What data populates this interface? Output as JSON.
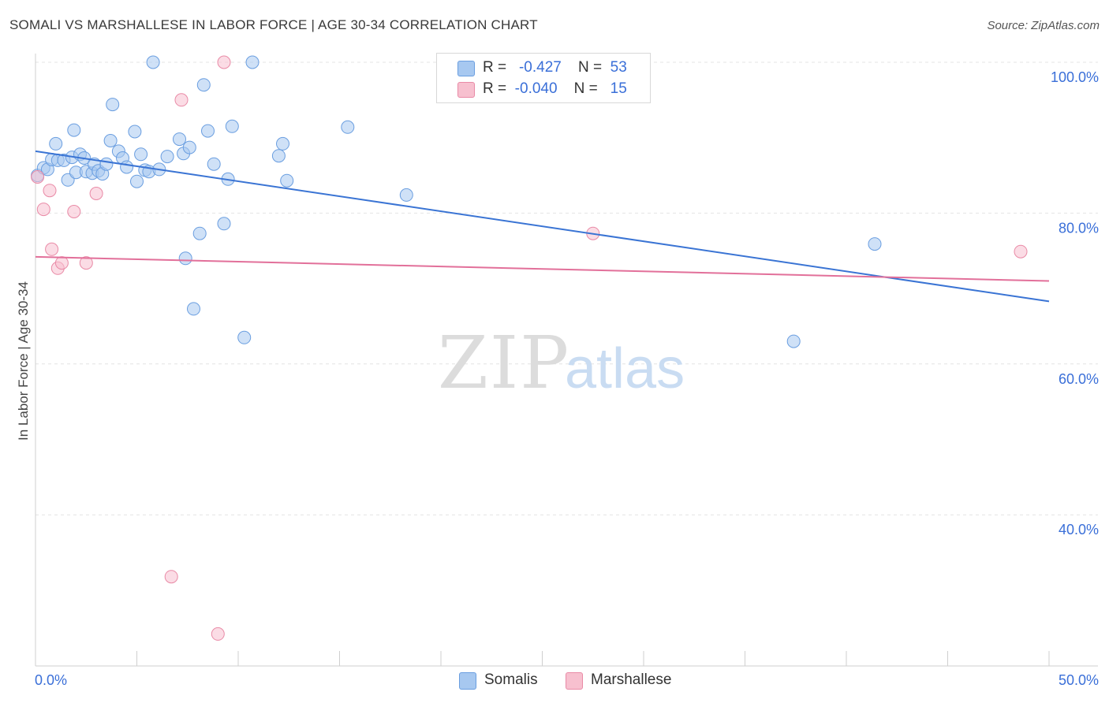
{
  "header": {
    "title": "SOMALI VS MARSHALLESE IN LABOR FORCE | AGE 30-34 CORRELATION CHART",
    "source": "Source: ZipAtlas.com"
  },
  "watermark": {
    "zip": "ZIP",
    "atlas": "atlas"
  },
  "legend": {
    "rows": [
      {
        "r_label": "R =",
        "r_value": "-0.427",
        "n_label": "N =",
        "n_value": "53",
        "color": "#a7c8f0",
        "border": "#6a9ee0"
      },
      {
        "r_label": "R =",
        "r_value": "-0.040",
        "n_label": "N =",
        "n_value": "15",
        "color": "#f7c0cf",
        "border": "#e98aa6"
      }
    ]
  },
  "bottom_legend": {
    "items": [
      {
        "label": "Somalis",
        "color": "#a7c8f0"
      },
      {
        "label": "Marshallese",
        "color": "#f7c0cf"
      }
    ]
  },
  "chart_data": {
    "type": "scatter",
    "title": "SOMALI VS MARSHALLESE IN LABOR FORCE | AGE 30-34 CORRELATION CHART",
    "xlabel": "",
    "ylabel": "In Labor Force | Age 30-34",
    "xlim": [
      0,
      50
    ],
    "ylim": [
      20,
      102
    ],
    "x_tick_labels": [
      "0.0%",
      "50.0%"
    ],
    "y_ticks": [
      40,
      60,
      80,
      100
    ],
    "y_tick_labels": [
      "40.0%",
      "60.0%",
      "80.0%",
      "100.0%"
    ],
    "grid": true,
    "series": [
      {
        "name": "Somalis",
        "color": "#a7c8f0",
        "stroke": "#6a9ee0",
        "line_color": "#3a74d4",
        "trend": {
          "x": [
            0,
            50
          ],
          "y": [
            88.2,
            68.3
          ]
        },
        "points": [
          [
            0.1,
            85.0
          ],
          [
            0.4,
            86.0
          ],
          [
            0.6,
            85.8
          ],
          [
            0.8,
            87.1
          ],
          [
            1.0,
            89.2
          ],
          [
            1.1,
            87.0
          ],
          [
            1.4,
            87.0
          ],
          [
            1.6,
            84.4
          ],
          [
            1.8,
            87.4
          ],
          [
            1.9,
            91.0
          ],
          [
            2.0,
            85.4
          ],
          [
            2.2,
            87.8
          ],
          [
            2.4,
            87.3
          ],
          [
            2.5,
            85.5
          ],
          [
            2.8,
            85.3
          ],
          [
            2.9,
            86.5
          ],
          [
            3.1,
            85.6
          ],
          [
            3.3,
            85.2
          ],
          [
            3.5,
            86.5
          ],
          [
            3.7,
            89.6
          ],
          [
            3.8,
            94.4
          ],
          [
            4.1,
            88.2
          ],
          [
            4.3,
            87.3
          ],
          [
            4.5,
            86.1
          ],
          [
            4.9,
            90.8
          ],
          [
            5.0,
            84.2
          ],
          [
            5.2,
            87.8
          ],
          [
            5.4,
            85.7
          ],
          [
            5.6,
            85.5
          ],
          [
            5.8,
            100.0
          ],
          [
            6.1,
            85.8
          ],
          [
            6.5,
            87.5
          ],
          [
            7.1,
            89.8
          ],
          [
            7.3,
            87.9
          ],
          [
            7.4,
            74.0
          ],
          [
            7.6,
            88.7
          ],
          [
            7.8,
            67.3
          ],
          [
            8.1,
            77.3
          ],
          [
            8.3,
            97.0
          ],
          [
            8.5,
            90.9
          ],
          [
            8.8,
            86.5
          ],
          [
            9.3,
            78.6
          ],
          [
            9.5,
            84.5
          ],
          [
            9.7,
            91.5
          ],
          [
            10.3,
            63.5
          ],
          [
            10.7,
            100.0
          ],
          [
            12.0,
            87.6
          ],
          [
            12.2,
            89.2
          ],
          [
            12.4,
            84.3
          ],
          [
            15.4,
            91.4
          ],
          [
            18.3,
            82.4
          ],
          [
            37.4,
            63.0
          ],
          [
            41.4,
            75.9
          ]
        ]
      },
      {
        "name": "Marshallese",
        "color": "#f7c0cf",
        "stroke": "#e98aa6",
        "line_color": "#e2709a",
        "trend": {
          "x": [
            0,
            50
          ],
          "y": [
            74.2,
            71.0
          ]
        },
        "points": [
          [
            0.1,
            84.8
          ],
          [
            0.4,
            80.5
          ],
          [
            0.7,
            83.0
          ],
          [
            0.8,
            75.2
          ],
          [
            1.1,
            72.7
          ],
          [
            1.3,
            73.4
          ],
          [
            1.9,
            80.2
          ],
          [
            2.5,
            73.4
          ],
          [
            3.0,
            82.6
          ],
          [
            6.7,
            31.8
          ],
          [
            7.2,
            95.0
          ],
          [
            9.0,
            24.2
          ],
          [
            9.3,
            100.0
          ],
          [
            27.5,
            77.3
          ],
          [
            48.6,
            74.9
          ]
        ]
      }
    ]
  }
}
